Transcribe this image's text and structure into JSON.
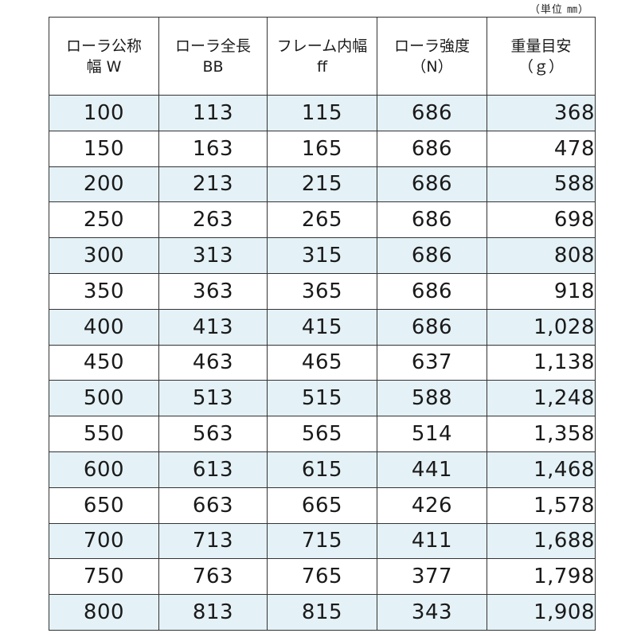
{
  "unit_note": "（単位 ㎜）",
  "columns": [
    {
      "line1": "ローラ公称",
      "line2": "幅 W"
    },
    {
      "line1": "ローラ全長",
      "line2": "BB"
    },
    {
      "line1": "フレーム内幅",
      "line2": "ff"
    },
    {
      "line1": "ローラ強度",
      "line2": "（N）"
    },
    {
      "line1": "重量目安",
      "line2": "（ｇ）"
    }
  ],
  "rows": [
    [
      "100",
      "113",
      "115",
      "686",
      "368"
    ],
    [
      "150",
      "163",
      "165",
      "686",
      "478"
    ],
    [
      "200",
      "213",
      "215",
      "686",
      "588"
    ],
    [
      "250",
      "263",
      "265",
      "686",
      "698"
    ],
    [
      "300",
      "313",
      "315",
      "686",
      "808"
    ],
    [
      "350",
      "363",
      "365",
      "686",
      "918"
    ],
    [
      "400",
      "413",
      "415",
      "686",
      "1,028"
    ],
    [
      "450",
      "463",
      "465",
      "637",
      "1,138"
    ],
    [
      "500",
      "513",
      "515",
      "588",
      "1,248"
    ],
    [
      "550",
      "563",
      "565",
      "514",
      "1,358"
    ],
    [
      "600",
      "613",
      "615",
      "441",
      "1,468"
    ],
    [
      "650",
      "663",
      "665",
      "426",
      "1,578"
    ],
    [
      "700",
      "713",
      "715",
      "411",
      "1,688"
    ],
    [
      "750",
      "763",
      "765",
      "377",
      "1,798"
    ],
    [
      "800",
      "813",
      "815",
      "343",
      "1,908"
    ]
  ],
  "colors": {
    "stripe": "#e4f1f6",
    "border": "#333333",
    "text": "#1a1a1a"
  }
}
